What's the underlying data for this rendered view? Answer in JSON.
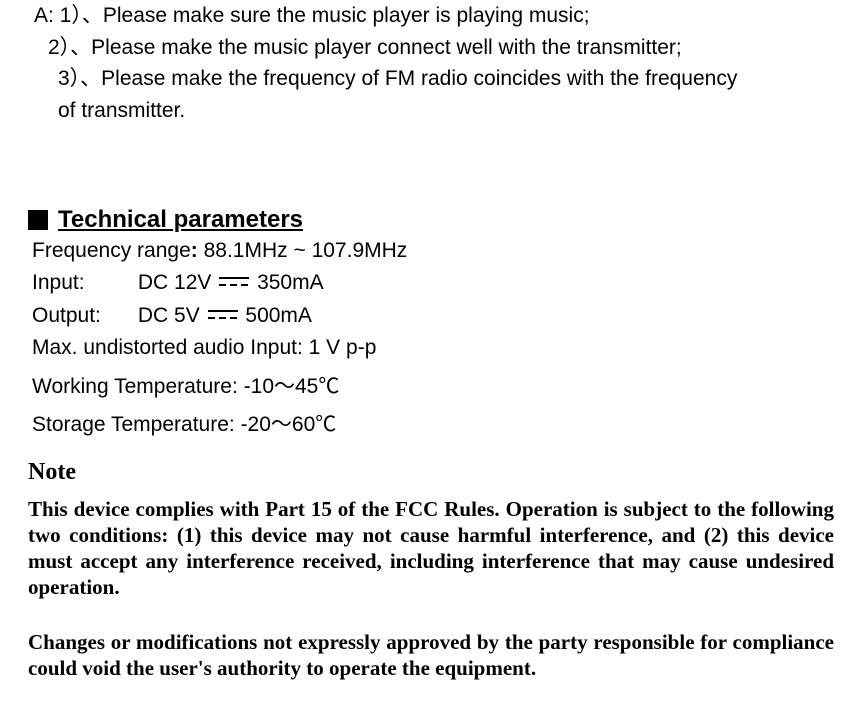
{
  "qa": {
    "a1": "A: 1）、Please make sure the music player is playing music;",
    "a2": "2）、Please make the music player connect well with the transmitter;",
    "a3": "3）、Please make the frequency of FM radio coincides with the frequency",
    "a3b": "of transmitter."
  },
  "section": {
    "title": "Technical parameters"
  },
  "params": {
    "freq_label": "Frequency range",
    "freq_value": "88.1MHz ~ 107.9MHz",
    "input_label": "Input:",
    "input_dc": "DC 12V",
    "input_current": "350mA",
    "output_label": "Output:",
    "output_dc": "DC 5V",
    "output_current": "500mA",
    "max_audio": "Max. undistorted audio Input: 1 V p-p",
    "work_temp": "Working Temperature:    -10～45℃",
    "store_temp": "Storage Temperature:    -20～60℃"
  },
  "note": {
    "heading": "Note",
    "p1": "This device complies with Part 15 of the FCC Rules. Operation is subject to the following two conditions: (1) this device may not cause harmful interference, and (2) this device must accept any interference received, including interference that may cause undesired operation.",
    "p2": "Changes or modifications not expressly approved by the party responsible for compliance could void the user's authority to operate the equipment."
  },
  "colors": {
    "text": "#000000",
    "background": "#ffffff"
  }
}
